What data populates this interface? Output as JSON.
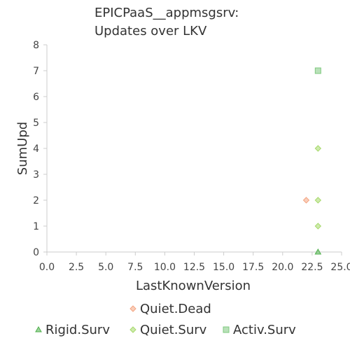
{
  "chart_data": {
    "type": "scatter",
    "title": [
      "EPICPaaS__appmsgsrv:",
      "Updates over LKV"
    ],
    "xlabel": "LastKnownVersion",
    "ylabel": "SumUpd",
    "xlim": [
      0,
      25
    ],
    "ylim": [
      0,
      8
    ],
    "x_ticks": [
      "0.0",
      "2.5",
      "5.0",
      "7.5",
      "10.0",
      "12.5",
      "15.0",
      "17.5",
      "20.0",
      "22.5",
      "25.0"
    ],
    "y_ticks": [
      "0",
      "1",
      "2",
      "3",
      "4",
      "5",
      "6",
      "7",
      "8"
    ],
    "grid": false,
    "legend_position": "bottom",
    "series": [
      {
        "name": "Quiet.Dead",
        "marker": "diamond",
        "color": "#f4a582",
        "points": [
          {
            "x": 22,
            "y": 2
          }
        ]
      },
      {
        "name": "Rigid.Surv",
        "marker": "triangle",
        "color": "#4daf4a",
        "points": [
          {
            "x": 23,
            "y": 0
          }
        ]
      },
      {
        "name": "Quiet.Surv",
        "marker": "diamond",
        "color": "#a6d96a",
        "points": [
          {
            "x": 23,
            "y": 1
          },
          {
            "x": 23,
            "y": 2
          },
          {
            "x": 23,
            "y": 4
          }
        ]
      },
      {
        "name": "Activ.Surv",
        "marker": "square",
        "color": "#7fc97f",
        "points": [
          {
            "x": 23,
            "y": 7
          }
        ]
      }
    ],
    "legend_rows": [
      [
        "Quiet.Dead"
      ],
      [
        "Rigid.Surv",
        "Quiet.Surv",
        "Activ.Surv"
      ]
    ]
  }
}
